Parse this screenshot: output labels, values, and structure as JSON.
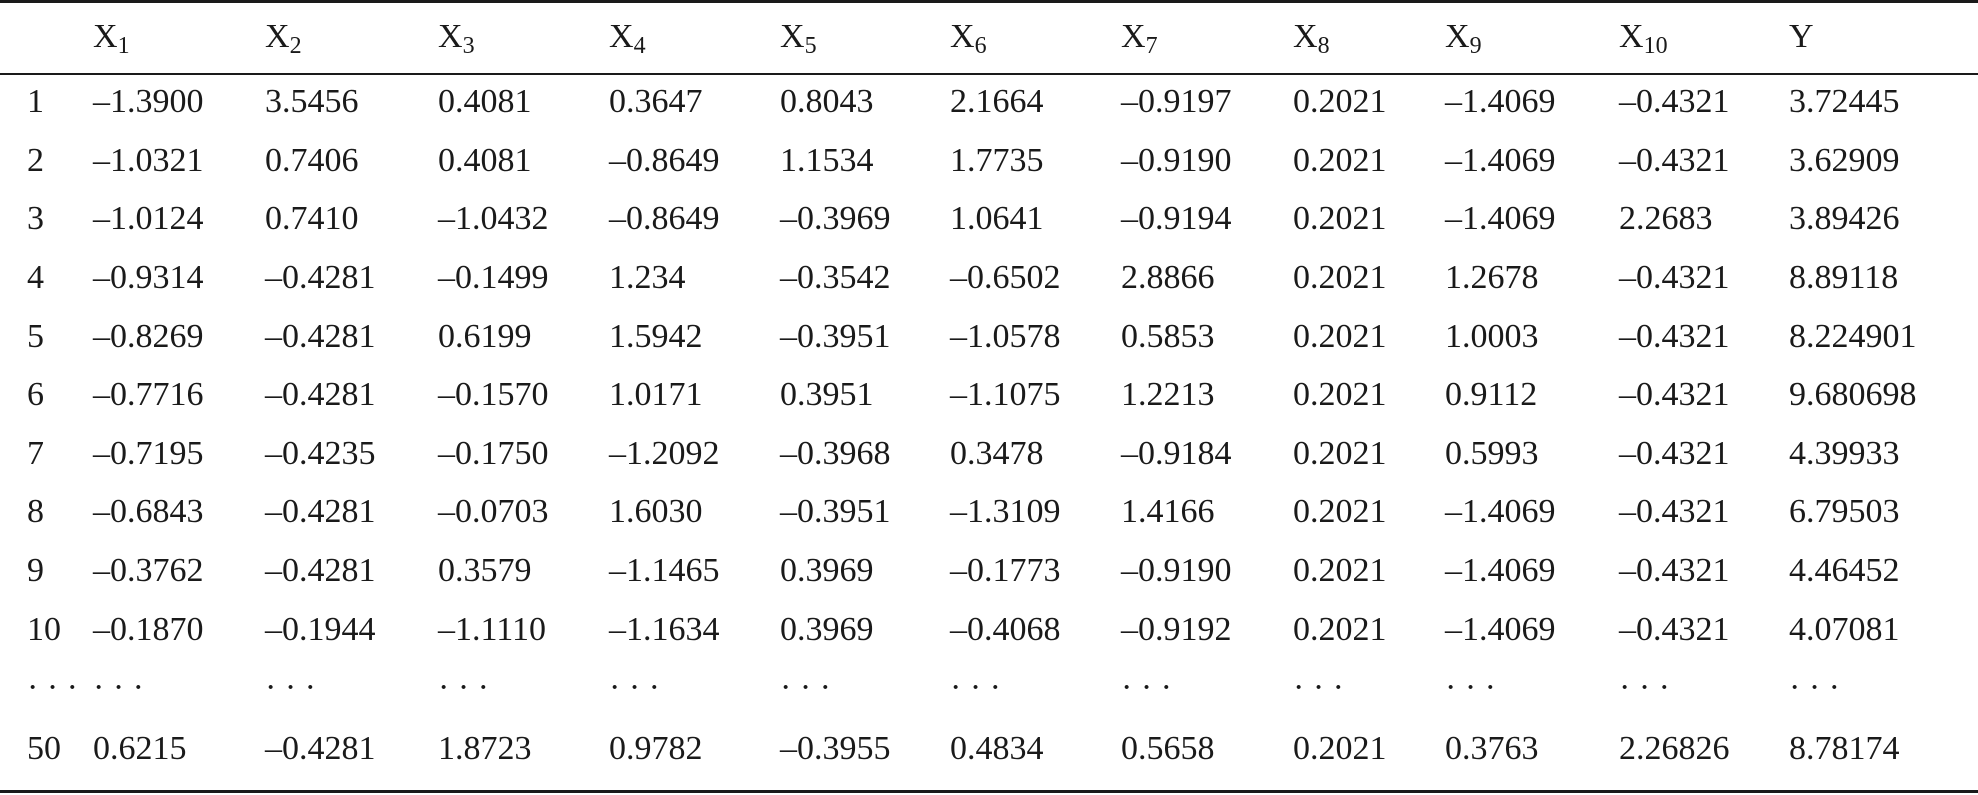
{
  "table": {
    "header": [
      {
        "base": "",
        "sub": ""
      },
      {
        "base": "X",
        "sub": "1"
      },
      {
        "base": "X",
        "sub": "2"
      },
      {
        "base": "X",
        "sub": "3"
      },
      {
        "base": "X",
        "sub": "4"
      },
      {
        "base": "X",
        "sub": "5"
      },
      {
        "base": "X",
        "sub": "6"
      },
      {
        "base": "X",
        "sub": "7"
      },
      {
        "base": "X",
        "sub": "8"
      },
      {
        "base": "X",
        "sub": "9"
      },
      {
        "base": "X",
        "sub": "10"
      },
      {
        "base": "Y",
        "sub": ""
      }
    ],
    "rows": [
      [
        "1",
        "–1.3900",
        "3.5456",
        "0.4081",
        "0.3647",
        "0.8043",
        "2.1664",
        "–0.9197",
        "0.2021",
        "–1.4069",
        "–0.4321",
        "3.72445"
      ],
      [
        "2",
        "–1.0321",
        "0.7406",
        "0.4081",
        "–0.8649",
        "1.1534",
        "1.7735",
        "–0.9190",
        "0.2021",
        "–1.4069",
        "–0.4321",
        "3.62909"
      ],
      [
        "3",
        "–1.0124",
        "0.7410",
        "–1.0432",
        "–0.8649",
        "–0.3969",
        "1.0641",
        "–0.9194",
        "0.2021",
        "–1.4069",
        "2.2683",
        "3.89426"
      ],
      [
        "4",
        "–0.9314",
        "–0.4281",
        "–0.1499",
        "1.234",
        "–0.3542",
        "–0.6502",
        "2.8866",
        "0.2021",
        "1.2678",
        "–0.4321",
        "8.89118"
      ],
      [
        "5",
        "–0.8269",
        "–0.4281",
        "0.6199",
        "1.5942",
        "–0.3951",
        "–1.0578",
        "0.5853",
        "0.2021",
        "1.0003",
        "–0.4321",
        "8.224901"
      ],
      [
        "6",
        "–0.7716",
        "–0.4281",
        "–0.1570",
        "1.0171",
        "0.3951",
        "–1.1075",
        "1.2213",
        "0.2021",
        "0.9112",
        "–0.4321",
        "9.680698"
      ],
      [
        "7",
        "–0.7195",
        "–0.4235",
        "–0.1750",
        "–1.2092",
        "–0.3968",
        "0.3478",
        "–0.9184",
        "0.2021",
        "0.5993",
        "–0.4321",
        "4.39933"
      ],
      [
        "8",
        "–0.6843",
        "–0.4281",
        "–0.0703",
        "1.6030",
        "–0.3951",
        "–1.3109",
        "1.4166",
        "0.2021",
        "–1.4069",
        "–0.4321",
        "6.79503"
      ],
      [
        "9",
        "–0.3762",
        "–0.4281",
        "0.3579",
        "–1.1465",
        "0.3969",
        "–0.1773",
        "–0.9190",
        "0.2021",
        "–1.4069",
        "–0.4321",
        "4.46452"
      ],
      [
        "10",
        "–0.1870",
        "–0.1944",
        "–1.1110",
        "–1.1634",
        "0.3969",
        "–0.4068",
        "–0.9192",
        "0.2021",
        "–1.4069",
        "–0.4321",
        "4.07081"
      ],
      [
        "· · ·",
        "· · ·",
        "· · ·",
        "· · ·",
        "· · ·",
        "· · ·",
        "· · ·",
        "· · ·",
        "· · ·",
        "· · ·",
        "· · ·",
        "· · ·"
      ],
      [
        "50",
        "0.6215",
        "–0.4281",
        "1.8723",
        "0.9782",
        "–0.3955",
        "0.4834",
        "0.5658",
        "0.2021",
        "0.3763",
        "2.26826",
        "8.78174"
      ]
    ]
  }
}
